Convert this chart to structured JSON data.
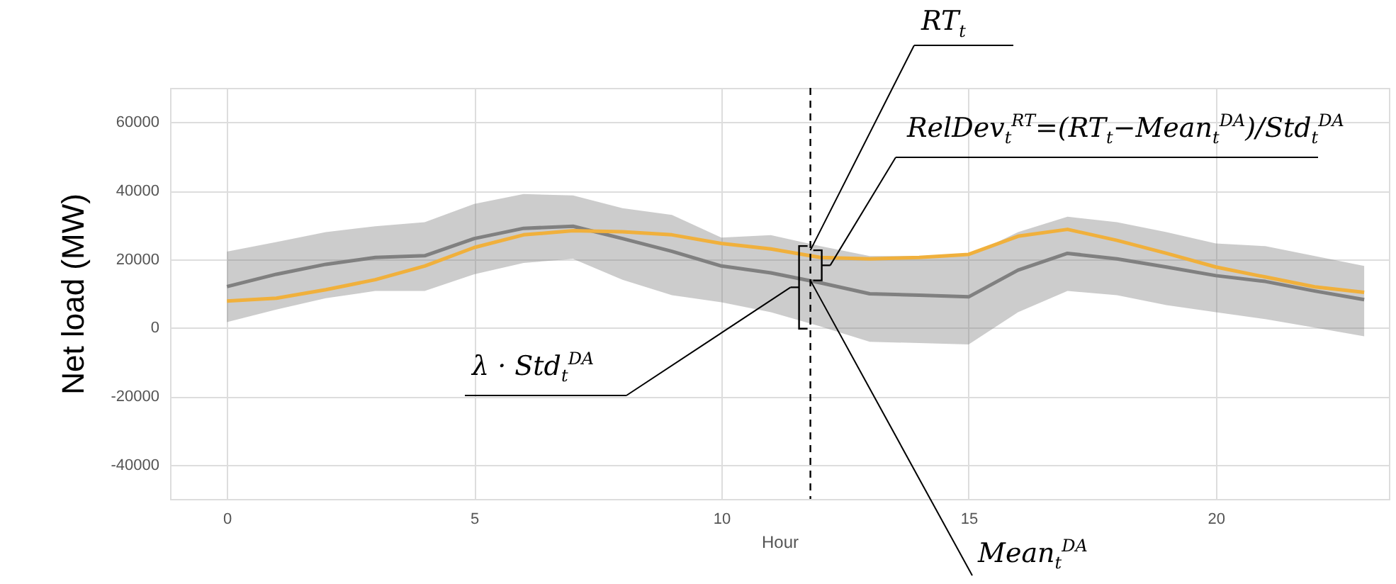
{
  "chart_data": {
    "type": "line",
    "xlabel": "Hour",
    "ylabel": "Net load (MW)",
    "x": [
      0,
      1,
      2,
      3,
      4,
      5,
      6,
      7,
      8,
      9,
      10,
      11,
      12,
      13,
      14,
      15,
      16,
      17,
      18,
      19,
      20,
      21,
      22,
      23
    ],
    "series": [
      {
        "color": "#808080",
        "values": [
          12000,
          15600,
          18500,
          20500,
          21000,
          26000,
          29000,
          29600,
          26000,
          22300,
          18000,
          16000,
          13100,
          9900,
          9500,
          9000,
          16800,
          21700,
          20100,
          17700,
          15200,
          13500,
          10700,
          8200
        ],
        "lower": [
          1600,
          5300,
          8600,
          10700,
          10700,
          15600,
          18900,
          20100,
          14000,
          9500,
          7400,
          4500,
          400,
          -4100,
          -4500,
          -4900,
          4500,
          10700,
          9500,
          6600,
          4500,
          2500,
          0,
          -2500
        ],
        "upper": [
          22200,
          25000,
          27900,
          29600,
          30800,
          36100,
          39000,
          38600,
          34900,
          32900,
          26300,
          27000,
          23800,
          20900,
          20900,
          20900,
          27900,
          32400,
          30800,
          27900,
          24600,
          23800,
          20900,
          18000
        ]
      },
      {
        "color": "#f0b03c",
        "values": [
          7800,
          8600,
          11100,
          14000,
          18000,
          23400,
          27100,
          28300,
          28000,
          27100,
          24600,
          23000,
          20500,
          20100,
          20500,
          21400,
          26700,
          28700,
          25500,
          21700,
          17700,
          14800,
          11900,
          10300
        ]
      }
    ],
    "xlim": [
      -1.15,
      23.5
    ],
    "xticks": [
      0,
      5,
      10,
      15,
      20
    ],
    "ylim": [
      -50000,
      70000
    ],
    "yticks": [
      -40000,
      -20000,
      0,
      20000,
      40000,
      60000
    ],
    "grid": true,
    "ref_lines": [
      {
        "axis": "x",
        "value": 11.8,
        "color": "#000000",
        "line_style": "dashed"
      }
    ],
    "annotations": [
      {
        "text": "RT$_{t}$",
        "x": 11.8,
        "y": 22600
      },
      "RelDev$_{t}$$^{RT}$=(RT$_{t}$−Mean$_{t}$$^{DA}$)/Std$_{t}$$^{DA}$",
      "λ · Std$_{t}$$^{DA}$",
      {
        "text": "Mean$_{t}$$^{DA}$",
        "x": 11.8,
        "y": 13800
      }
    ]
  }
}
